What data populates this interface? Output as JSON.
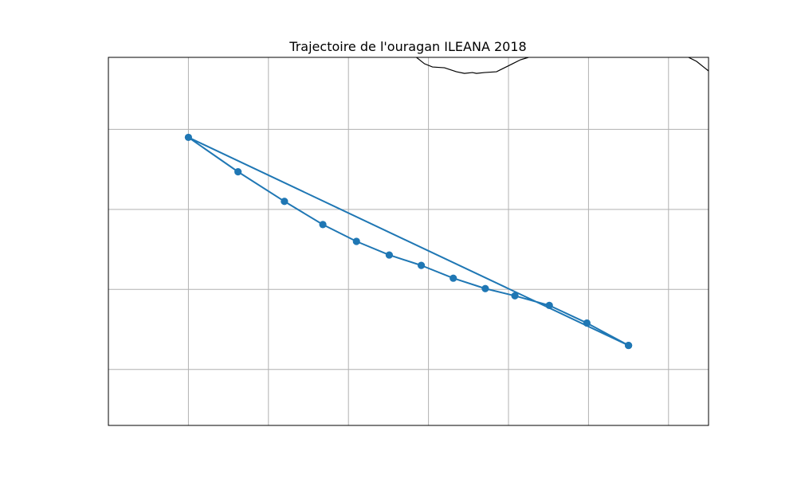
{
  "chart_data": {
    "type": "line",
    "title": "Trajectoire de l'ouragan ILEANA 2018",
    "xlim": [
      0,
      7.5
    ],
    "ylim": [
      -4.6,
      0
    ],
    "grid": true,
    "colors": {
      "track": "#1f77b4",
      "grid": "#b0b0b0",
      "coast": "#000000",
      "frame": "#000000"
    },
    "gridlines_x": [
      1,
      2,
      3,
      4,
      5,
      6,
      7
    ],
    "gridlines_y": [
      -0.9,
      -1.9,
      -2.9,
      -3.9
    ],
    "series": [
      {
        "marker": "circle",
        "x": [
          6.5,
          1.0,
          1.62,
          2.2,
          2.68,
          3.1,
          3.51,
          3.91,
          4.31,
          4.71,
          5.08,
          5.51,
          5.98,
          6.5
        ],
        "y": [
          -3.6,
          -1.0,
          -1.43,
          -1.8,
          -2.09,
          -2.3,
          -2.47,
          -2.6,
          -2.76,
          -2.89,
          -2.98,
          -3.1,
          -3.32,
          -3.6
        ]
      }
    ],
    "coastlines": [
      {
        "x": [
          3.85,
          3.95,
          4.05,
          4.2,
          4.35,
          4.45,
          4.55,
          4.6,
          4.7,
          4.85,
          4.95,
          5.05,
          5.15,
          5.25
        ],
        "y": [
          0,
          -0.08,
          -0.12,
          -0.13,
          -0.18,
          -0.2,
          -0.19,
          -0.2,
          -0.19,
          -0.18,
          -0.13,
          -0.08,
          -0.03,
          0
        ]
      },
      {
        "x": [
          7.25,
          7.35,
          7.45,
          7.5
        ],
        "y": [
          0,
          -0.05,
          -0.13,
          -0.17
        ]
      }
    ]
  }
}
